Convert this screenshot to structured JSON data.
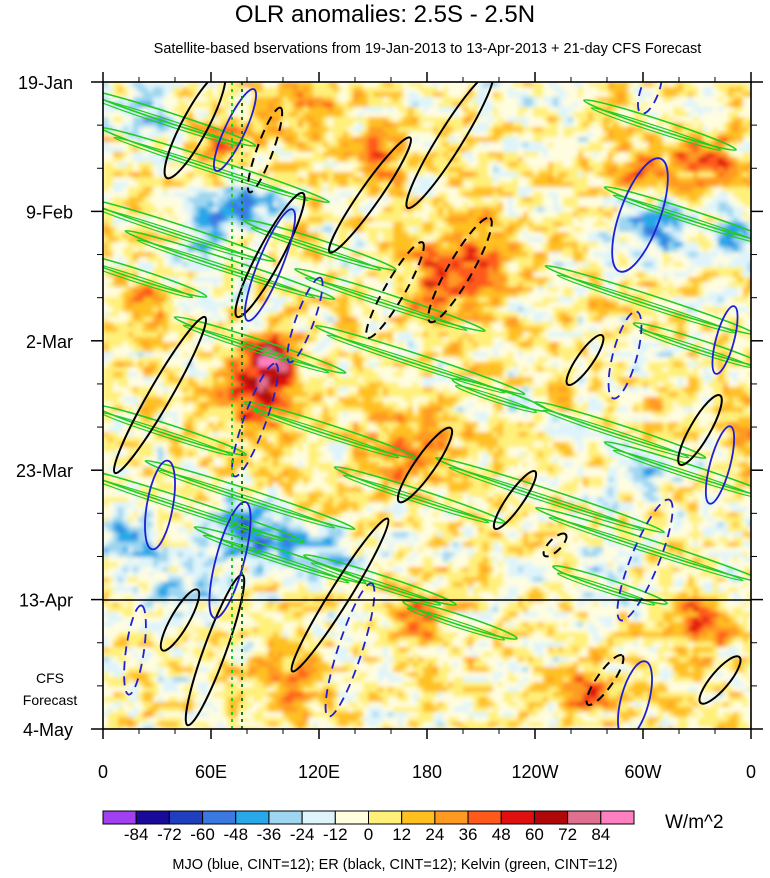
{
  "chart_data": {
    "type": "heatmap",
    "title": "OLR anomalies: 2.5S - 2.5N",
    "subtitle": "Satellite-based bservations from 19-Jan-2013 to 13-Apr-2013 + 21-day CFS Forecast",
    "x_ticks": [
      "0",
      "60E",
      "120E",
      "180",
      "120W",
      "60W",
      "0"
    ],
    "x_range_deg_east": [
      0,
      360
    ],
    "y_ticks": [
      "19-Jan",
      "9-Feb",
      "2-Mar",
      "23-Mar",
      "13-Apr",
      "4-May"
    ],
    "y_range": [
      "2013-01-19",
      "2013-05-04"
    ],
    "observation_end": "2013-04-13",
    "forecast_label_line1": "CFS",
    "forecast_label_line2": "Forecast",
    "colorbar": {
      "levels": [
        -84,
        -72,
        -60,
        -48,
        -36,
        -24,
        -12,
        0,
        12,
        24,
        36,
        48,
        60,
        72,
        84
      ],
      "tick_labels": [
        "-84",
        "-72",
        "-60",
        "-48",
        "-36",
        "-24",
        "-12",
        "0",
        "12",
        "24",
        "36",
        "48",
        "60",
        "72",
        "84"
      ],
      "colors": [
        "#a040f0",
        "#1a0a9a",
        "#1f3fbf",
        "#3b78e0",
        "#28a8e8",
        "#9ed5f0",
        "#dff4fa",
        "#fffde0",
        "#fff07a",
        "#ffc020",
        "#ff9a20",
        "#ff5a1a",
        "#e01010",
        "#b00808",
        "#e07090",
        "#ff80c0"
      ],
      "units": "W/m^2"
    },
    "contours": [
      {
        "name": "MJO",
        "color": "#2020d0"
      },
      {
        "name": "ER",
        "color": "#000000"
      },
      {
        "name": "Kelvin",
        "color": "#22cc22"
      }
    ],
    "caption": "MJO (blue, CINT=12); ER (black, CINT=12); Kelvin (green, CINT=12)"
  }
}
